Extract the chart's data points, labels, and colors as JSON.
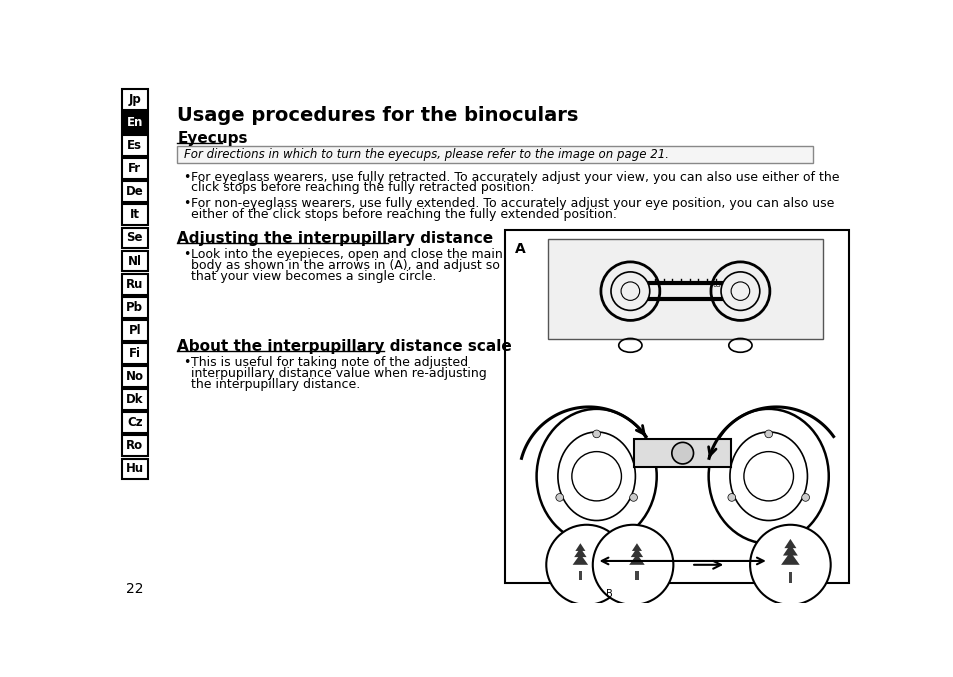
{
  "bg_color": "#ffffff",
  "sidebar_labels": [
    "Jp",
    "En",
    "Es",
    "Fr",
    "De",
    "It",
    "Se",
    "Nl",
    "Ru",
    "Pb",
    "Pl",
    "Fi",
    "No",
    "Dk",
    "Cz",
    "Ro",
    "Hu"
  ],
  "sidebar_active": "En",
  "page_number": "22",
  "title": "Usage procedures for the binoculars",
  "section1_heading": "Eyecups",
  "notice_text": "For directions in which to turn the eyecups, please refer to the image on page 21.",
  "bullet1a": "For eyeglass wearers, use fully retracted. To accurately adjust your view, you can also use either of the",
  "bullet1b": "click stops before reaching the fully retracted position.",
  "bullet2a": "For non-eyeglass wearers, use fully extended. To accurately adjust your eye position, you can also use",
  "bullet2b": "either of the click stops before reaching the fully extended position.",
  "section2_heading": "Adjusting the interpupillary distance",
  "bullet3a": "Look into the eyepieces, open and close the main",
  "bullet3b": "body as shown in the arrows in (A), and adjust so",
  "bullet3c": "that your view becomes a single circle.",
  "section3_heading": "About the interpupillary distance scale",
  "bullet4a": "This is useful for taking note of the adjusted",
  "bullet4b": "interpupillary distance value when re-adjusting",
  "bullet4c": "the interpupillary distance."
}
